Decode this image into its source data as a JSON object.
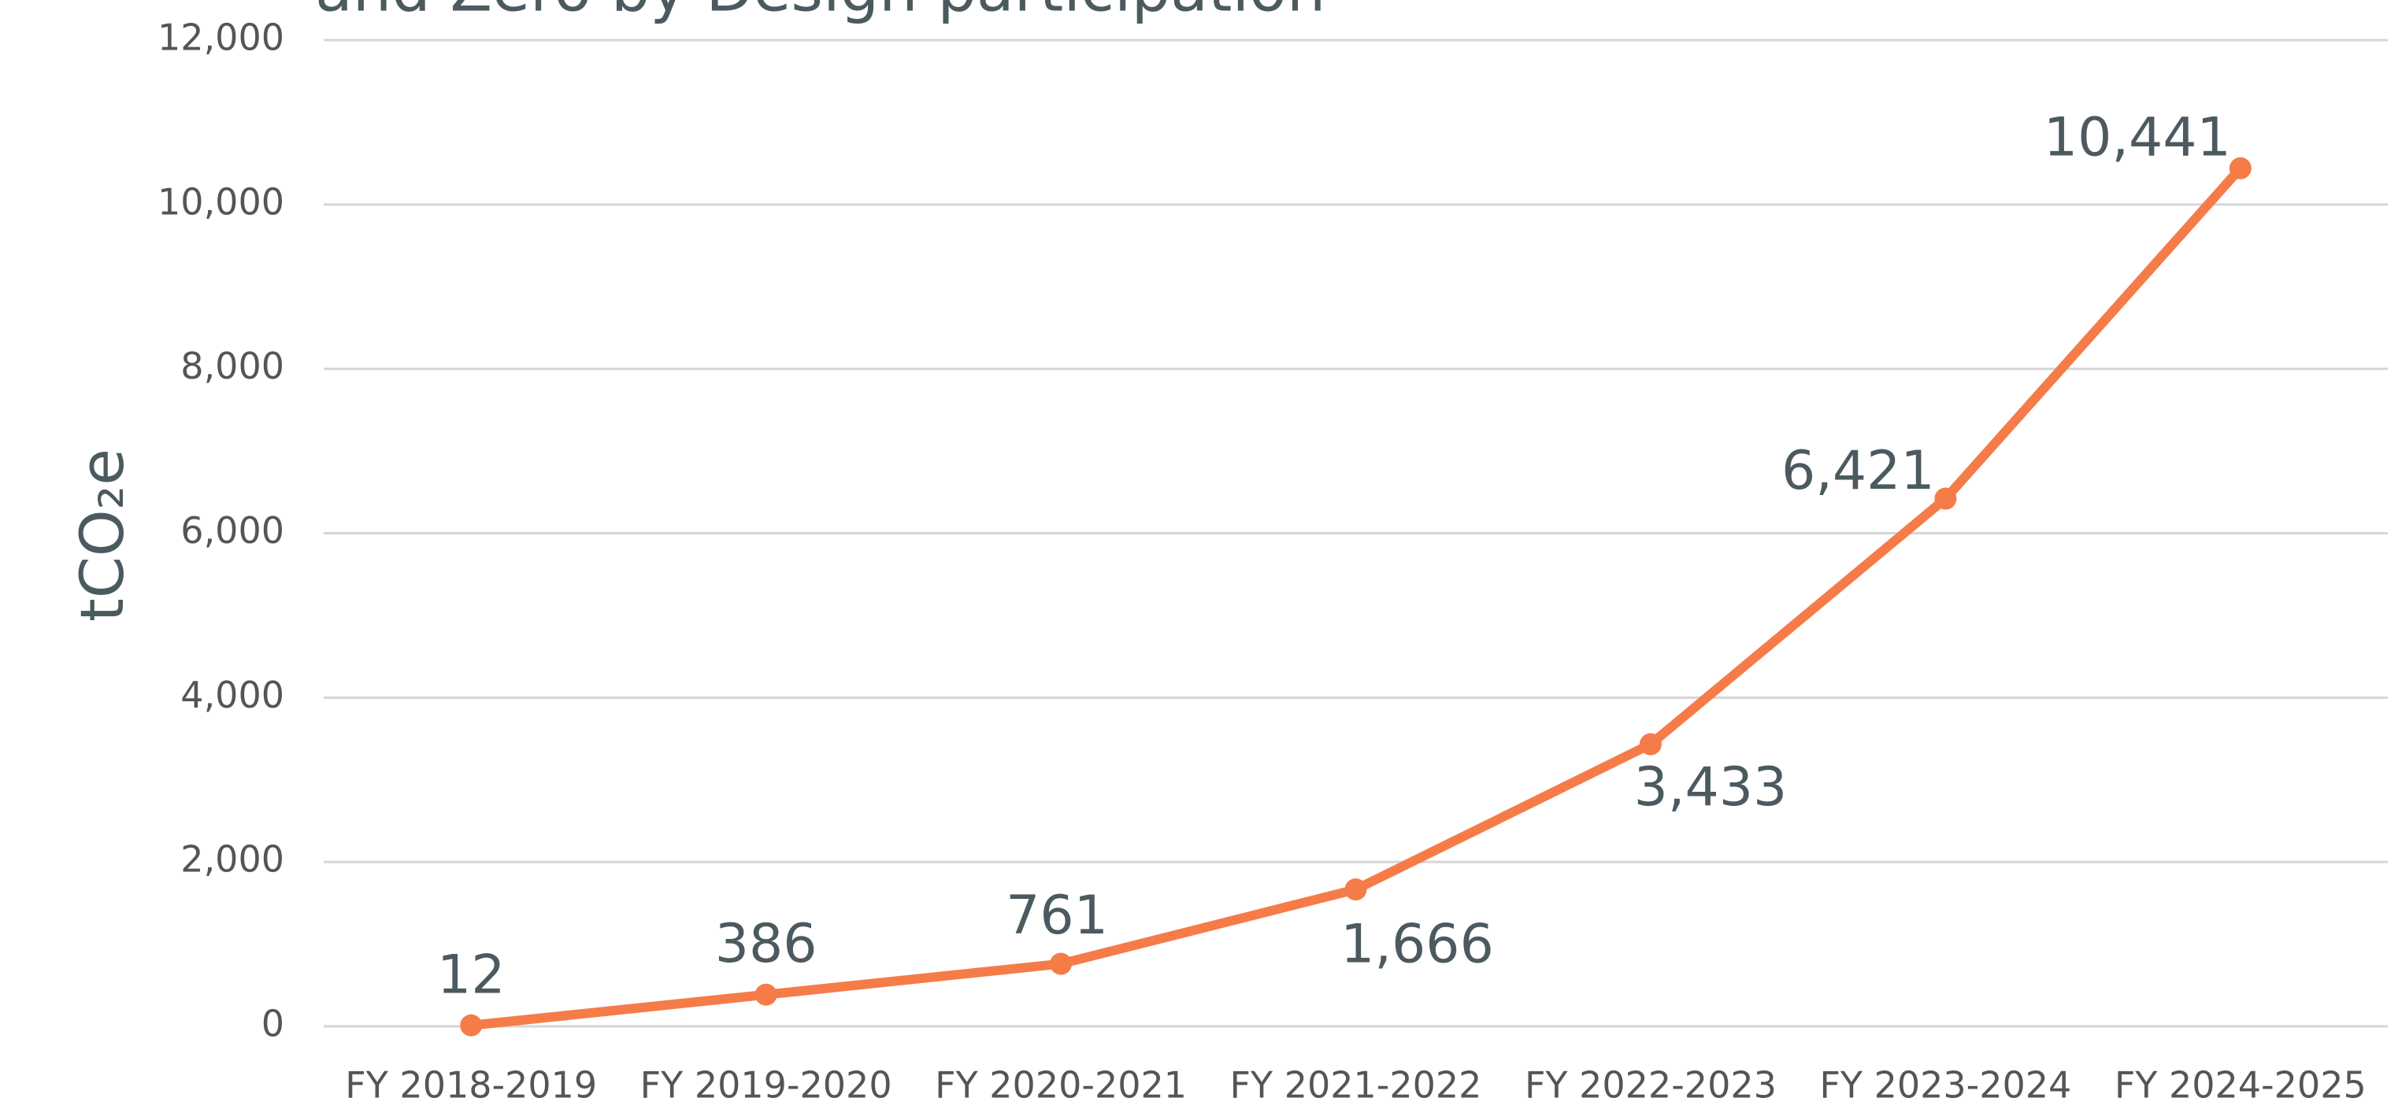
{
  "chart_data": {
    "type": "line",
    "title": "and Zero by Design participation",
    "y_label": "tCO₂e",
    "categories": [
      "FY 2018-2019",
      "FY 2019-2020",
      "FY 2020-2021",
      "FY 2021-2022",
      "FY 2022-2023",
      "FY 2023-2024",
      "FY 2024-2025"
    ],
    "series": [
      {
        "name": "tCO₂e",
        "color": "#f57c48",
        "values": [
          12,
          386,
          761,
          1666,
          3433,
          6421,
          10441
        ],
        "value_labels": [
          "12",
          "386",
          "761",
          "1,666",
          "3,433",
          "6,421",
          "10,441"
        ]
      }
    ],
    "ylim": [
      0,
      12000
    ],
    "yticks": [
      0,
      {
        "value": 2000,
        "label": "2,000"
      },
      {
        "value": 4000,
        "label": "4,000"
      },
      {
        "value": 6000,
        "label": "6,000"
      },
      {
        "value": 8000,
        "label": "8,000"
      },
      {
        "value": 10000,
        "label": "10,000"
      },
      {
        "value": 12000,
        "label": "12,000"
      }
    ],
    "grid": true
  }
}
